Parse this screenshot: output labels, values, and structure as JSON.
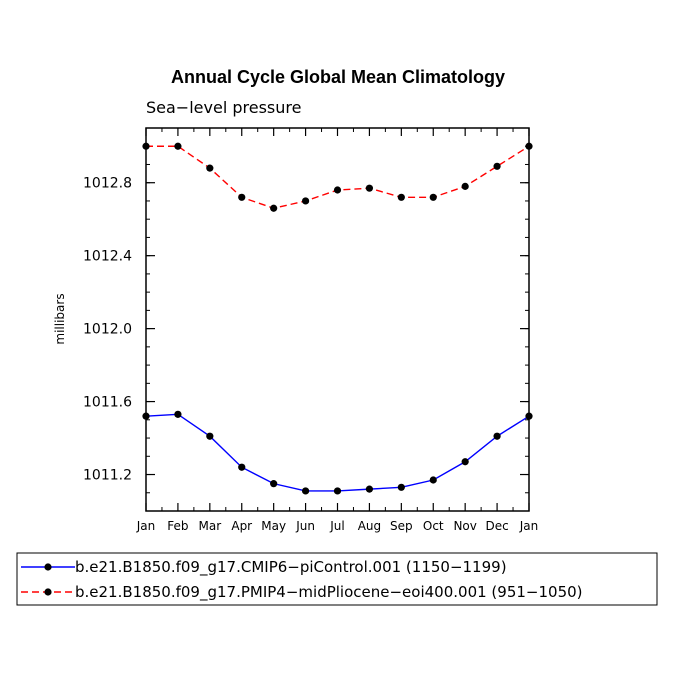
{
  "chart_data": {
    "type": "line",
    "title": "Annual Cycle Global Mean Climatology",
    "subtitle": "Sea−level pressure",
    "xlabel": "",
    "ylabel": "millibars",
    "categories": [
      "Jan",
      "Feb",
      "Mar",
      "Apr",
      "May",
      "Jun",
      "Jul",
      "Aug",
      "Sep",
      "Oct",
      "Nov",
      "Dec",
      "Jan"
    ],
    "ylim": [
      1011.0,
      1013.1
    ],
    "yticks": [
      1011.2,
      1011.6,
      1012.0,
      1012.4,
      1012.8
    ],
    "ytick_labels": [
      "1011.2",
      "1011.6",
      "1012.0",
      "1012.4",
      "1012.8"
    ],
    "legend_position": "bottom",
    "series": [
      {
        "name": "b.e21.B1850.f09_g17.CMIP6−piControl.001 (1150−1199)",
        "color": "#0000ff",
        "dash": "solid",
        "values": [
          1011.52,
          1011.53,
          1011.41,
          1011.24,
          1011.15,
          1011.11,
          1011.11,
          1011.12,
          1011.13,
          1011.17,
          1011.27,
          1011.41,
          1011.52
        ]
      },
      {
        "name": "b.e21.B1850.f09_g17.PMIP4−midPliocene−eoi400.001 (951−1050)",
        "color": "#ff0000",
        "dash": "dashed",
        "values": [
          1013.0,
          1013.0,
          1012.88,
          1012.72,
          1012.66,
          1012.7,
          1012.76,
          1012.77,
          1012.72,
          1012.72,
          1012.78,
          1012.89,
          1013.0
        ]
      }
    ]
  }
}
